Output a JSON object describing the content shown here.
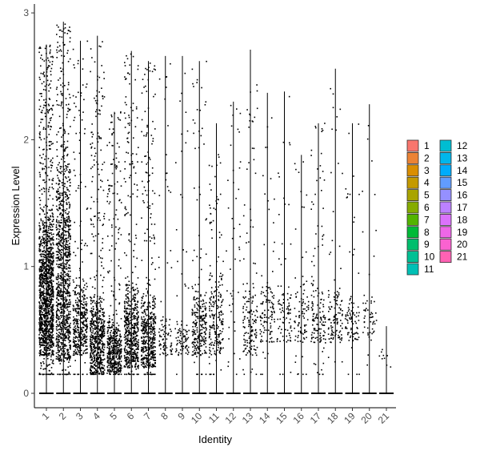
{
  "chart_data": {
    "type": "scatter",
    "subtype": "violin-jitter",
    "xlabel": "Identity",
    "ylabel": "Expression Level",
    "categories": [
      "1",
      "2",
      "3",
      "4",
      "5",
      "6",
      "7",
      "8",
      "9",
      "10",
      "11",
      "12",
      "13",
      "14",
      "15",
      "16",
      "17",
      "18",
      "19",
      "20",
      "21"
    ],
    "ylim": [
      -0.16,
      3.06
    ],
    "yticks": [
      0,
      1,
      2,
      3
    ],
    "grid": false,
    "legend_position": "right",
    "legend_columns": 2,
    "max_values": [
      2.75,
      2.93,
      2.78,
      2.82,
      2.22,
      2.7,
      2.62,
      2.66,
      2.66,
      2.62,
      2.13,
      2.3,
      2.71,
      2.37,
      2.38,
      1.88,
      2.13,
      2.56,
      2.13,
      2.28,
      0.53
    ],
    "dense_ranges": [
      [
        0.3,
        1.5
      ],
      [
        0.25,
        1.9
      ],
      [
        0.3,
        0.9
      ],
      [
        0.15,
        0.8
      ],
      [
        0.15,
        0.6
      ],
      [
        0.2,
        0.9
      ],
      [
        0.2,
        0.8
      ],
      [
        0.3,
        0.6
      ],
      [
        0.3,
        0.6
      ],
      [
        0.3,
        0.85
      ],
      [
        0.3,
        1.0
      ],
      [
        0.0,
        0.0
      ],
      [
        0.3,
        0.9
      ],
      [
        0.4,
        0.9
      ],
      [
        0.4,
        0.9
      ],
      [
        0.4,
        0.9
      ],
      [
        0.4,
        0.9
      ],
      [
        0.4,
        0.9
      ],
      [
        0.4,
        0.8
      ],
      [
        0.4,
        0.8
      ],
      [
        0.2,
        0.4
      ]
    ],
    "colors": [
      "#F8766D",
      "#EB8335",
      "#DA8E00",
      "#C49A00",
      "#A9A400",
      "#86AC00",
      "#53B400",
      "#00BA38",
      "#00BE6D",
      "#00C094",
      "#00C0B5",
      "#00BDD2",
      "#00B6EB",
      "#00ACFC",
      "#619CFF",
      "#9590FF",
      "#BC81FF",
      "#DB72FB",
      "#EE67E7",
      "#FA62D0",
      "#FF62B3"
    ]
  }
}
